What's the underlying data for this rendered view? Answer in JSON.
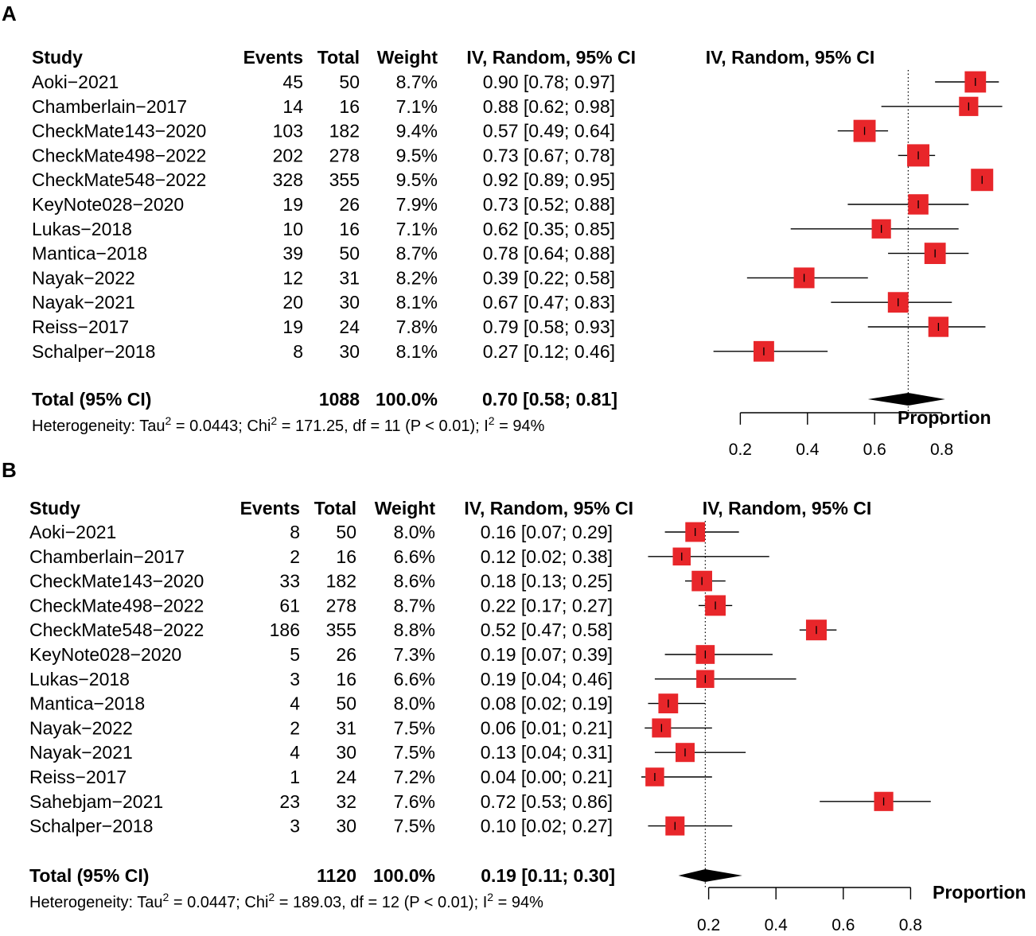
{
  "chart_data": [
    {
      "type": "forest",
      "panel_label": "A",
      "headers": {
        "study": "Study",
        "events": "Events",
        "total": "Total",
        "weight": "Weight",
        "ci": "IV, Random, 95% CI",
        "plot": "IV, Random, 95% CI"
      },
      "studies": [
        {
          "name": "Aoki−2021",
          "events": "45",
          "total": "50",
          "weight": "8.7%",
          "ci_text": "0.90 [0.78; 0.97]",
          "est": 0.9,
          "lo": 0.78,
          "hi": 0.97
        },
        {
          "name": "Chamberlain−2017",
          "events": "14",
          "total": "16",
          "weight": "7.1%",
          "ci_text": "0.88 [0.62; 0.98]",
          "est": 0.88,
          "lo": 0.62,
          "hi": 0.98
        },
        {
          "name": "CheckMate143−2020",
          "events": "103",
          "total": "182",
          "weight": "9.4%",
          "ci_text": "0.57 [0.49; 0.64]",
          "est": 0.57,
          "lo": 0.49,
          "hi": 0.64
        },
        {
          "name": "CheckMate498−2022",
          "events": "202",
          "total": "278",
          "weight": "9.5%",
          "ci_text": "0.73 [0.67; 0.78]",
          "est": 0.73,
          "lo": 0.67,
          "hi": 0.78
        },
        {
          "name": "CheckMate548−2022",
          "events": "328",
          "total": "355",
          "weight": "9.5%",
          "ci_text": "0.92 [0.89; 0.95]",
          "est": 0.92,
          "lo": 0.89,
          "hi": 0.95
        },
        {
          "name": "KeyNote028−2020",
          "events": "19",
          "total": "26",
          "weight": "7.9%",
          "ci_text": "0.73 [0.52; 0.88]",
          "est": 0.73,
          "lo": 0.52,
          "hi": 0.88
        },
        {
          "name": "Lukas−2018",
          "events": "10",
          "total": "16",
          "weight": "7.1%",
          "ci_text": "0.62 [0.35; 0.85]",
          "est": 0.62,
          "lo": 0.35,
          "hi": 0.85
        },
        {
          "name": "Mantica−2018",
          "events": "39",
          "total": "50",
          "weight": "8.7%",
          "ci_text": "0.78 [0.64; 0.88]",
          "est": 0.78,
          "lo": 0.64,
          "hi": 0.88
        },
        {
          "name": "Nayak−2022",
          "events": "12",
          "total": "31",
          "weight": "8.2%",
          "ci_text": "0.39 [0.22; 0.58]",
          "est": 0.39,
          "lo": 0.22,
          "hi": 0.58
        },
        {
          "name": "Nayak−2021",
          "events": "20",
          "total": "30",
          "weight": "8.1%",
          "ci_text": "0.67 [0.47; 0.83]",
          "est": 0.67,
          "lo": 0.47,
          "hi": 0.83
        },
        {
          "name": "Reiss−2017",
          "events": "19",
          "total": "24",
          "weight": "7.8%",
          "ci_text": "0.79 [0.58; 0.93]",
          "est": 0.79,
          "lo": 0.58,
          "hi": 0.93
        },
        {
          "name": "Schalper−2018",
          "events": "8",
          "total": "30",
          "weight": "8.1%",
          "ci_text": "0.27 [0.12; 0.46]",
          "est": 0.27,
          "lo": 0.12,
          "hi": 0.46
        }
      ],
      "total_row": {
        "label": "Total (95% CI)",
        "total": "1088",
        "weight": "100.0%",
        "ci_text": "0.70 [0.58; 0.81]",
        "est": 0.7,
        "lo": 0.58,
        "hi": 0.81
      },
      "heterogeneity": {
        "prefix": "Heterogeneity: Tau",
        "sup1": "2",
        "mid1": " = 0.0443; Chi",
        "sup2": "2",
        "mid2": " = 171.25, df = 11 (P < 0.01); I",
        "sup3": "2",
        "suffix": " = 94%"
      },
      "xlabel": "Proportion",
      "ticks": [
        0.2,
        0.4,
        0.6,
        0.8
      ],
      "tick_labels": [
        "0.2",
        "0.4",
        "0.6",
        "0.8"
      ],
      "reference_line": 0.7,
      "square_color": "#e8262a"
    },
    {
      "type": "forest",
      "panel_label": "B",
      "headers": {
        "study": "Study",
        "events": "Events",
        "total": "Total",
        "weight": "Weight",
        "ci": "IV, Random, 95% CI",
        "plot": "IV, Random, 95% CI"
      },
      "studies": [
        {
          "name": "Aoki−2021",
          "events": "8",
          "total": "50",
          "weight": "8.0%",
          "ci_text": "0.16 [0.07; 0.29]",
          "est": 0.16,
          "lo": 0.07,
          "hi": 0.29
        },
        {
          "name": "Chamberlain−2017",
          "events": "2",
          "total": "16",
          "weight": "6.6%",
          "ci_text": "0.12 [0.02; 0.38]",
          "est": 0.12,
          "lo": 0.02,
          "hi": 0.38
        },
        {
          "name": "CheckMate143−2020",
          "events": "33",
          "total": "182",
          "weight": "8.6%",
          "ci_text": "0.18 [0.13; 0.25]",
          "est": 0.18,
          "lo": 0.13,
          "hi": 0.25
        },
        {
          "name": "CheckMate498−2022",
          "events": "61",
          "total": "278",
          "weight": "8.7%",
          "ci_text": "0.22 [0.17; 0.27]",
          "est": 0.22,
          "lo": 0.17,
          "hi": 0.27
        },
        {
          "name": "CheckMate548−2022",
          "events": "186",
          "total": "355",
          "weight": "8.8%",
          "ci_text": "0.52 [0.47; 0.58]",
          "est": 0.52,
          "lo": 0.47,
          "hi": 0.58
        },
        {
          "name": "KeyNote028−2020",
          "events": "5",
          "total": "26",
          "weight": "7.3%",
          "ci_text": "0.19 [0.07; 0.39]",
          "est": 0.19,
          "lo": 0.07,
          "hi": 0.39
        },
        {
          "name": "Lukas−2018",
          "events": "3",
          "total": "16",
          "weight": "6.6%",
          "ci_text": "0.19 [0.04; 0.46]",
          "est": 0.19,
          "lo": 0.04,
          "hi": 0.46
        },
        {
          "name": "Mantica−2018",
          "events": "4",
          "total": "50",
          "weight": "8.0%",
          "ci_text": "0.08 [0.02; 0.19]",
          "est": 0.08,
          "lo": 0.02,
          "hi": 0.19
        },
        {
          "name": "Nayak−2022",
          "events": "2",
          "total": "31",
          "weight": "7.5%",
          "ci_text": "0.06 [0.01; 0.21]",
          "est": 0.06,
          "lo": 0.01,
          "hi": 0.21
        },
        {
          "name": "Nayak−2021",
          "events": "4",
          "total": "30",
          "weight": "7.5%",
          "ci_text": "0.13 [0.04; 0.31]",
          "est": 0.13,
          "lo": 0.04,
          "hi": 0.31
        },
        {
          "name": "Reiss−2017",
          "events": "1",
          "total": "24",
          "weight": "7.2%",
          "ci_text": "0.04 [0.00; 0.21]",
          "est": 0.04,
          "lo": 0.0,
          "hi": 0.21
        },
        {
          "name": "Sahebjam−2021",
          "events": "23",
          "total": "32",
          "weight": "7.6%",
          "ci_text": "0.72 [0.53; 0.86]",
          "est": 0.72,
          "lo": 0.53,
          "hi": 0.86
        },
        {
          "name": "Schalper−2018",
          "events": "3",
          "total": "30",
          "weight": "7.5%",
          "ci_text": "0.10 [0.02; 0.27]",
          "est": 0.1,
          "lo": 0.02,
          "hi": 0.27
        }
      ],
      "total_row": {
        "label": "Total (95% CI)",
        "total": "1120",
        "weight": "100.0%",
        "ci_text": "0.19 [0.11; 0.30]",
        "est": 0.19,
        "lo": 0.11,
        "hi": 0.3
      },
      "heterogeneity": {
        "prefix": "Heterogeneity: Tau",
        "sup1": "2",
        "mid1": " = 0.0447; Chi",
        "sup2": "2",
        "mid2": " = 189.03, df = 12 (P < 0.01); I",
        "sup3": "2",
        "suffix": " = 94%"
      },
      "xlabel": "Proportion",
      "ticks": [
        0.2,
        0.4,
        0.6,
        0.8
      ],
      "tick_labels": [
        "0.2",
        "0.4",
        "0.6",
        "0.8"
      ],
      "reference_line": 0.19,
      "square_color": "#e8262a"
    }
  ]
}
